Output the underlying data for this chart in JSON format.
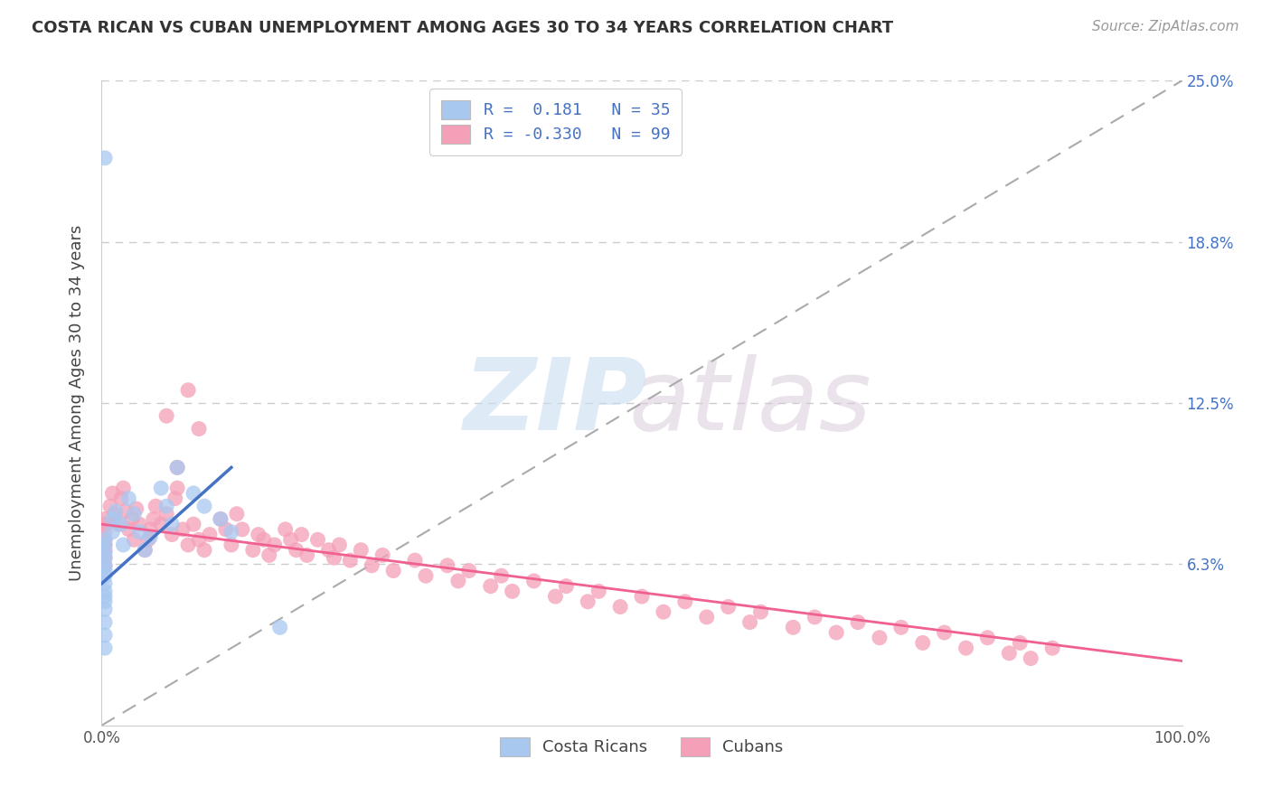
{
  "title": "COSTA RICAN VS CUBAN UNEMPLOYMENT AMONG AGES 30 TO 34 YEARS CORRELATION CHART",
  "source": "Source: ZipAtlas.com",
  "ylabel": "Unemployment Among Ages 30 to 34 years",
  "xlim": [
    0,
    1.0
  ],
  "ylim": [
    0,
    0.25
  ],
  "cr_color": "#a8c8f0",
  "cuban_color": "#f4a0b8",
  "trendline_cr_color": "#4472c4",
  "trendline_cuban_color": "#f06090",
  "diagonal_color": "#aaaaaa",
  "background_color": "#ffffff",
  "cr_R": 0.181,
  "cr_N": 35,
  "cuban_R": -0.33,
  "cuban_N": 99,
  "cr_x": [
    0.003,
    0.003,
    0.003,
    0.003,
    0.003,
    0.003,
    0.003,
    0.003,
    0.003,
    0.003,
    0.003,
    0.003,
    0.003,
    0.003,
    0.003,
    0.01,
    0.01,
    0.013,
    0.018,
    0.02,
    0.025,
    0.03,
    0.035,
    0.04,
    0.045,
    0.055,
    0.06,
    0.065,
    0.07,
    0.085,
    0.095,
    0.11,
    0.12,
    0.165,
    0.003
  ],
  "cr_y": [
    0.055,
    0.058,
    0.06,
    0.062,
    0.065,
    0.067,
    0.07,
    0.072,
    0.048,
    0.05,
    0.052,
    0.045,
    0.04,
    0.035,
    0.03,
    0.075,
    0.08,
    0.083,
    0.078,
    0.07,
    0.088,
    0.082,
    0.075,
    0.068,
    0.073,
    0.092,
    0.085,
    0.078,
    0.1,
    0.09,
    0.085,
    0.08,
    0.075,
    0.038,
    0.22
  ],
  "cuban_x": [
    0.003,
    0.003,
    0.003,
    0.003,
    0.003,
    0.003,
    0.003,
    0.003,
    0.008,
    0.01,
    0.012,
    0.015,
    0.018,
    0.02,
    0.022,
    0.025,
    0.028,
    0.03,
    0.032,
    0.035,
    0.04,
    0.043,
    0.045,
    0.048,
    0.05,
    0.055,
    0.06,
    0.065,
    0.068,
    0.07,
    0.075,
    0.08,
    0.085,
    0.09,
    0.095,
    0.1,
    0.11,
    0.115,
    0.12,
    0.125,
    0.13,
    0.14,
    0.145,
    0.15,
    0.155,
    0.16,
    0.17,
    0.175,
    0.18,
    0.185,
    0.19,
    0.2,
    0.21,
    0.215,
    0.22,
    0.23,
    0.24,
    0.25,
    0.26,
    0.27,
    0.29,
    0.3,
    0.32,
    0.33,
    0.34,
    0.36,
    0.37,
    0.38,
    0.4,
    0.42,
    0.43,
    0.45,
    0.46,
    0.48,
    0.5,
    0.52,
    0.54,
    0.56,
    0.58,
    0.6,
    0.61,
    0.64,
    0.66,
    0.68,
    0.7,
    0.72,
    0.74,
    0.76,
    0.78,
    0.8,
    0.82,
    0.84,
    0.85,
    0.86,
    0.88,
    0.06,
    0.07,
    0.08,
    0.09
  ],
  "cuban_y": [
    0.062,
    0.065,
    0.068,
    0.07,
    0.072,
    0.075,
    0.078,
    0.08,
    0.085,
    0.09,
    0.082,
    0.078,
    0.088,
    0.092,
    0.083,
    0.076,
    0.08,
    0.072,
    0.084,
    0.078,
    0.068,
    0.072,
    0.076,
    0.08,
    0.085,
    0.078,
    0.082,
    0.074,
    0.088,
    0.092,
    0.076,
    0.07,
    0.078,
    0.072,
    0.068,
    0.074,
    0.08,
    0.076,
    0.07,
    0.082,
    0.076,
    0.068,
    0.074,
    0.072,
    0.066,
    0.07,
    0.076,
    0.072,
    0.068,
    0.074,
    0.066,
    0.072,
    0.068,
    0.065,
    0.07,
    0.064,
    0.068,
    0.062,
    0.066,
    0.06,
    0.064,
    0.058,
    0.062,
    0.056,
    0.06,
    0.054,
    0.058,
    0.052,
    0.056,
    0.05,
    0.054,
    0.048,
    0.052,
    0.046,
    0.05,
    0.044,
    0.048,
    0.042,
    0.046,
    0.04,
    0.044,
    0.038,
    0.042,
    0.036,
    0.04,
    0.034,
    0.038,
    0.032,
    0.036,
    0.03,
    0.034,
    0.028,
    0.032,
    0.026,
    0.03,
    0.12,
    0.1,
    0.13,
    0.115
  ]
}
